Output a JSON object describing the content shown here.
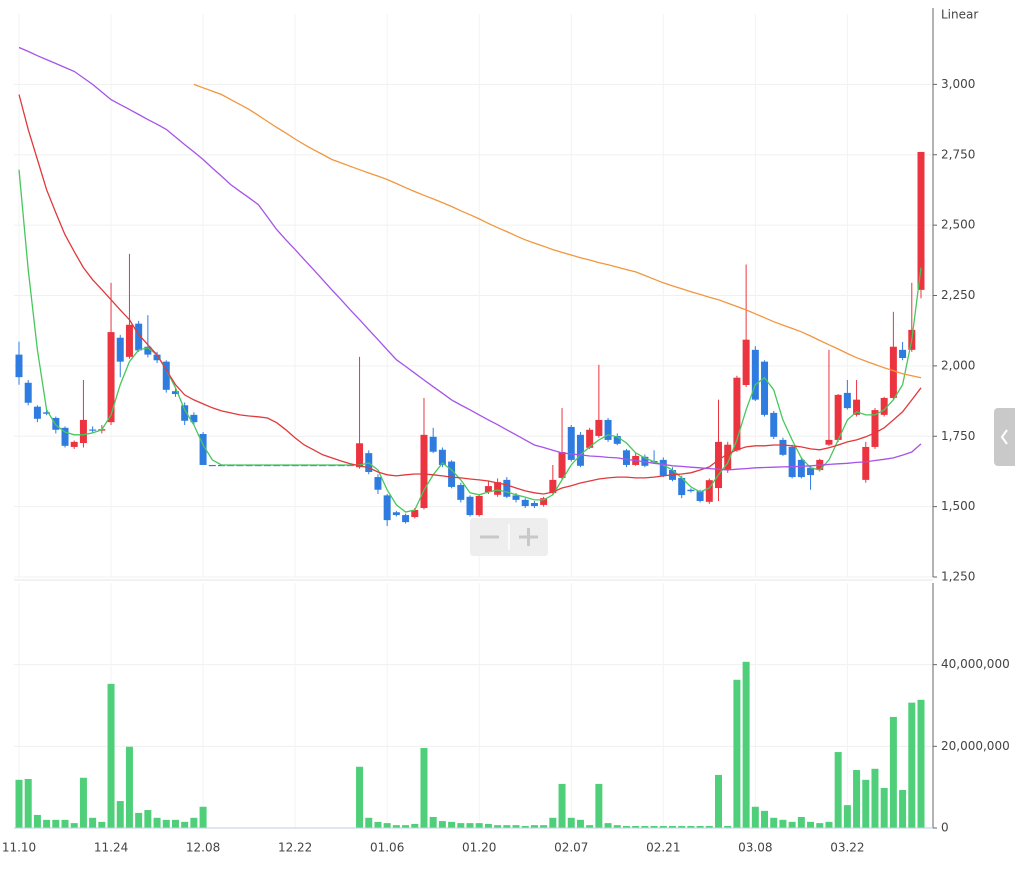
{
  "chart_data": [
    {
      "type": "candlestick",
      "scale_label": "Linear",
      "up_color": "#ec3440",
      "down_color": "#2f7ce0",
      "open": [
        2040,
        1940,
        1855,
        1835,
        1815,
        1780,
        1712,
        1726,
        1774,
        1770,
        1800,
        2100,
        2032,
        2150,
        2068,
        2040,
        2015,
        1910,
        1860,
        1826,
        1758,
        1648,
        1648,
        1648,
        1648,
        1648,
        1648,
        1648,
        1648,
        1648,
        1648,
        1648,
        1648,
        1648,
        1648,
        1648,
        1648,
        1640,
        1690,
        1605,
        1540,
        1480,
        1470,
        1463,
        1495,
        1748,
        1702,
        1660,
        1577,
        1535,
        1470,
        1552,
        1542,
        1595,
        1540,
        1524,
        1513,
        1506,
        1548,
        1602,
        1783,
        1755,
        1709,
        1751,
        1808,
        1751,
        1700,
        1648,
        1677,
        1662,
        1666,
        1630,
        1602,
        1560,
        1555,
        1517,
        1566,
        1630,
        1700,
        1932,
        2057,
        2015,
        1833,
        1737,
        1712,
        1666,
        1638,
        1630,
        1720,
        1737,
        1904,
        1826,
        1595,
        1712,
        1826,
        1886,
        2057,
        2057,
        2270
      ],
      "high": [
        2086,
        1950,
        1860,
        1845,
        1820,
        1785,
        1735,
        1950,
        1785,
        1790,
        2295,
        2110,
        2398,
        2160,
        2180,
        2050,
        2020,
        1920,
        1870,
        1835,
        1765,
        1648,
        1648,
        1648,
        1648,
        1648,
        1648,
        1648,
        1648,
        1648,
        1648,
        1648,
        1648,
        1648,
        1648,
        1648,
        1648,
        2032,
        1700,
        1615,
        1545,
        1485,
        1475,
        1495,
        1886,
        1780,
        1710,
        1665,
        1585,
        1540,
        1545,
        1590,
        1600,
        1605,
        1548,
        1530,
        1520,
        1535,
        1648,
        1850,
        1790,
        1765,
        1780,
        2004,
        1815,
        1760,
        1705,
        1690,
        1685,
        1700,
        1675,
        1640,
        1610,
        1565,
        1560,
        1600,
        1880,
        1730,
        1965,
        2360,
        2070,
        2020,
        1840,
        1745,
        1720,
        1672,
        1645,
        1670,
        2057,
        1900,
        1950,
        1950,
        1730,
        1850,
        1890,
        2192,
        2085,
        2295,
        2760
      ],
      "low": [
        1933,
        1860,
        1800,
        1825,
        1760,
        1710,
        1705,
        1710,
        1760,
        1760,
        1790,
        1960,
        2025,
        2050,
        2030,
        2010,
        1905,
        1890,
        1790,
        1790,
        1648,
        1648,
        1648,
        1648,
        1648,
        1648,
        1648,
        1648,
        1648,
        1648,
        1648,
        1648,
        1648,
        1648,
        1648,
        1648,
        1648,
        1635,
        1615,
        1545,
        1431,
        1465,
        1440,
        1458,
        1490,
        1690,
        1640,
        1565,
        1515,
        1465,
        1465,
        1545,
        1535,
        1530,
        1515,
        1495,
        1495,
        1500,
        1540,
        1595,
        1660,
        1640,
        1705,
        1745,
        1730,
        1718,
        1640,
        1645,
        1640,
        1655,
        1605,
        1590,
        1530,
        1550,
        1515,
        1510,
        1520,
        1620,
        1695,
        1925,
        1875,
        1820,
        1740,
        1680,
        1600,
        1600,
        1560,
        1625,
        1715,
        1730,
        1845,
        1820,
        1585,
        1705,
        1820,
        1880,
        2020,
        2050,
        2240
      ],
      "close": [
        1960,
        1869,
        1812,
        1830,
        1773,
        1716,
        1730,
        1808,
        1770,
        1775,
        2120,
        2015,
        2146,
        2055,
        2040,
        2020,
        1915,
        1900,
        1805,
        1800,
        1648,
        1648,
        1648,
        1648,
        1648,
        1648,
        1648,
        1648,
        1648,
        1648,
        1648,
        1648,
        1648,
        1648,
        1648,
        1648,
        1648,
        1725,
        1623,
        1560,
        1452,
        1470,
        1445,
        1488,
        1755,
        1695,
        1648,
        1570,
        1524,
        1470,
        1538,
        1573,
        1587,
        1535,
        1524,
        1502,
        1502,
        1530,
        1595,
        1694,
        1666,
        1645,
        1773,
        1808,
        1737,
        1723,
        1648,
        1680,
        1645,
        1658,
        1610,
        1595,
        1541,
        1555,
        1520,
        1594,
        1730,
        1720,
        1958,
        2093,
        1880,
        1826,
        1748,
        1684,
        1605,
        1605,
        1612,
        1666,
        1737,
        1897,
        1850,
        1880,
        1712,
        1843,
        1886,
        2068,
        2028,
        2128,
        2760
      ],
      "series": [
        {
          "color": "#47c75c",
          "values": [
            2697,
            2342,
            2057,
            1844,
            1790,
            1765,
            1755,
            1755,
            1762,
            1773,
            1826,
            1933,
            2015,
            2057,
            2064,
            2039,
            1986,
            1922,
            1844,
            1790,
            1719,
            1666,
            1648,
            1648,
            1648,
            1648,
            1648,
            1648,
            1648,
            1648,
            1648,
            1648,
            1648,
            1648,
            1648,
            1648,
            1648,
            1648,
            1655,
            1630,
            1559,
            1506,
            1481,
            1488,
            1559,
            1613,
            1655,
            1630,
            1595,
            1549,
            1542,
            1552,
            1559,
            1552,
            1542,
            1534,
            1524,
            1524,
            1542,
            1595,
            1648,
            1684,
            1712,
            1737,
            1755,
            1748,
            1726,
            1691,
            1673,
            1659,
            1648,
            1630,
            1602,
            1570,
            1552,
            1566,
            1613,
            1655,
            1737,
            1844,
            1933,
            1958,
            1915,
            1808,
            1737,
            1673,
            1638,
            1630,
            1666,
            1737,
            1808,
            1837,
            1826,
            1826,
            1844,
            1880,
            1933,
            2093,
            2349
          ]
        },
        {
          "color": "#e0393c",
          "values": [
            2964,
            2840,
            2733,
            2626,
            2544,
            2466,
            2406,
            2349,
            2306,
            2271,
            2235,
            2199,
            2164,
            2111,
            2075,
            2039,
            1986,
            1933,
            1897,
            1879,
            1865,
            1851,
            1840,
            1833,
            1826,
            1822,
            1819,
            1815,
            1798,
            1773,
            1744,
            1719,
            1702,
            1684,
            1673,
            1662,
            1652,
            1645,
            1638,
            1623,
            1613,
            1609,
            1613,
            1616,
            1616,
            1613,
            1609,
            1605,
            1602,
            1598,
            1595,
            1591,
            1584,
            1577,
            1566,
            1556,
            1549,
            1545,
            1552,
            1566,
            1574,
            1584,
            1591,
            1598,
            1602,
            1605,
            1605,
            1602,
            1602,
            1605,
            1609,
            1613,
            1616,
            1620,
            1630,
            1641,
            1666,
            1687,
            1702,
            1712,
            1716,
            1716,
            1719,
            1719,
            1716,
            1712,
            1705,
            1702,
            1709,
            1719,
            1730,
            1737,
            1748,
            1762,
            1780,
            1808,
            1837,
            1879,
            1922
          ]
        },
        {
          "color": "#a653ea",
          "values": [
            3131,
            3117,
            3102,
            3088,
            3074,
            3060,
            3046,
            3023,
            3000,
            2973,
            2946,
            2928,
            2911,
            2893,
            2875,
            2858,
            2840,
            2813,
            2786,
            2760,
            2733,
            2703,
            2674,
            2644,
            2620,
            2597,
            2573,
            2529,
            2484,
            2448,
            2413,
            2377,
            2342,
            2306,
            2270,
            2235,
            2199,
            2164,
            2128,
            2093,
            2057,
            2022,
            1998,
            1974,
            1950,
            1926,
            1903,
            1879,
            1861,
            1844,
            1826,
            1808,
            1791,
            1773,
            1755,
            1737,
            1719,
            1710,
            1700,
            1691,
            1687,
            1684,
            1680,
            1678,
            1675,
            1673,
            1668,
            1664,
            1659,
            1654,
            1650,
            1645,
            1643,
            1640,
            1638,
            1635,
            1633,
            1630,
            1633,
            1635,
            1638,
            1639,
            1640,
            1641,
            1642,
            1643,
            1645,
            1647,
            1650,
            1652,
            1654,
            1657,
            1659,
            1664,
            1668,
            1673,
            1683,
            1694,
            1723
          ]
        },
        {
          "color": "#f2963e",
          "values": [
            null,
            null,
            null,
            null,
            null,
            null,
            null,
            null,
            null,
            null,
            null,
            null,
            null,
            null,
            null,
            null,
            null,
            null,
            null,
            3000,
            2988,
            2976,
            2964,
            2946,
            2929,
            2911,
            2890,
            2868,
            2847,
            2827,
            2806,
            2786,
            2768,
            2751,
            2733,
            2721,
            2709,
            2697,
            2685,
            2674,
            2662,
            2648,
            2633,
            2619,
            2606,
            2593,
            2580,
            2566,
            2551,
            2537,
            2522,
            2506,
            2491,
            2477,
            2462,
            2448,
            2436,
            2425,
            2413,
            2403,
            2394,
            2384,
            2376,
            2367,
            2359,
            2351,
            2342,
            2334,
            2321,
            2308,
            2295,
            2284,
            2274,
            2263,
            2254,
            2244,
            2235,
            2223,
            2211,
            2199,
            2185,
            2171,
            2157,
            2145,
            2133,
            2121,
            2106,
            2090,
            2075,
            2060,
            2044,
            2029,
            2017,
            2005,
            1993,
            1983,
            1972,
            1965,
            1958
          ]
        }
      ],
      "ylim": [
        1250,
        3250
      ],
      "yticks": [
        {
          "value": 1250,
          "label": "1,250"
        },
        {
          "value": 1500,
          "label": "1,500"
        },
        {
          "value": 1750,
          "label": "1,750"
        },
        {
          "value": 2000,
          "label": "2,000"
        },
        {
          "value": 2250,
          "label": "2,250"
        },
        {
          "value": 2500,
          "label": "2,500"
        },
        {
          "value": 2750,
          "label": "2,750"
        },
        {
          "value": 3000,
          "label": "3,000"
        }
      ],
      "grid": true
    },
    {
      "type": "bar",
      "color": "#4fcf7a",
      "categories": [
        "11.10",
        null,
        null,
        null,
        null,
        null,
        null,
        null,
        null,
        null,
        "11.24",
        null,
        null,
        null,
        null,
        null,
        null,
        null,
        null,
        null,
        "12.08",
        null,
        null,
        null,
        null,
        null,
        null,
        null,
        null,
        null,
        "12.22",
        null,
        null,
        null,
        null,
        null,
        null,
        null,
        null,
        null,
        "01.06",
        null,
        null,
        null,
        null,
        null,
        null,
        null,
        null,
        null,
        "01.20",
        null,
        null,
        null,
        null,
        null,
        null,
        null,
        null,
        null,
        "02.07",
        null,
        null,
        null,
        null,
        null,
        null,
        null,
        null,
        null,
        "02.21",
        null,
        null,
        null,
        null,
        null,
        null,
        null,
        null,
        null,
        "03.08",
        null,
        null,
        null,
        null,
        null,
        null,
        null,
        null,
        null,
        "03.22",
        null,
        null,
        null,
        null,
        null,
        null,
        null,
        null
      ],
      "values": [
        11800000,
        12000000,
        3200000,
        2000000,
        2000000,
        2000000,
        1200000,
        12300000,
        2500000,
        1500000,
        35300000,
        6600000,
        19900000,
        3700000,
        4400000,
        2500000,
        2000000,
        2000000,
        1500000,
        2500000,
        5200000,
        0,
        0,
        0,
        0,
        0,
        0,
        0,
        0,
        0,
        0,
        0,
        0,
        0,
        0,
        0,
        0,
        15000000,
        2500000,
        1500000,
        1200000,
        700000,
        700000,
        1000000,
        19600000,
        2700000,
        1700000,
        1500000,
        1200000,
        1200000,
        1200000,
        1000000,
        700000,
        700000,
        700000,
        500000,
        700000,
        700000,
        2500000,
        10800000,
        2500000,
        2000000,
        700000,
        10800000,
        1200000,
        700000,
        500000,
        500000,
        500000,
        500000,
        500000,
        500000,
        500000,
        500000,
        500000,
        500000,
        13000000,
        500000,
        36300000,
        40700000,
        5200000,
        4200000,
        2500000,
        2000000,
        1500000,
        2700000,
        1500000,
        1200000,
        1500000,
        18600000,
        5600000,
        14200000,
        11800000,
        14500000,
        9800000,
        27200000,
        9300000,
        30700000,
        31400000
      ],
      "ylim": [
        0,
        60000000
      ],
      "yticks": [
        0,
        {
          "value": 20000000,
          "label": "20,000,000"
        },
        {
          "value": 40000000,
          "label": "40,000,000"
        }
      ],
      "grid": true
    }
  ]
}
